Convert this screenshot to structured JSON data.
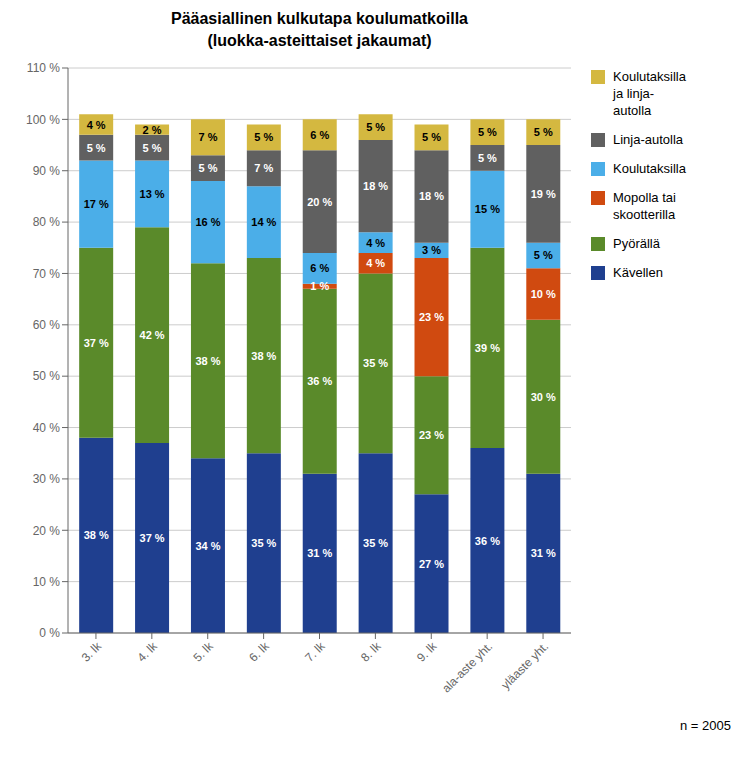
{
  "chart_data": {
    "type": "bar",
    "title": "Pääasiallinen kulkutapa koulumatkoilla\n(luokka-asteittaiset jakaumat)",
    "categories": [
      "3. lk",
      "4. lk",
      "5. lk",
      "6. lk",
      "7. lk",
      "8. lk",
      "9. lk",
      "ala-aste yht.",
      "yläaste yht."
    ],
    "series": [
      {
        "name": "Kävellen",
        "color": "#1F3F8F",
        "values": [
          38,
          37,
          34,
          35,
          31,
          35,
          27,
          36,
          31
        ],
        "value_labels": [
          "38 %",
          "37 %",
          "34 %",
          "35 %",
          "31 %",
          "35 %",
          "27 %",
          "36 %",
          "31 %"
        ]
      },
      {
        "name": "Pyörällä",
        "color": "#5A8A2A",
        "values": [
          37,
          42,
          38,
          38,
          36,
          35,
          23,
          39,
          30
        ],
        "value_labels": [
          "37 %",
          "42 %",
          "38 %",
          "38 %",
          "36 %",
          "35 %",
          "23 %",
          "39 %",
          "30 %"
        ]
      },
      {
        "name": "Mopolla tai\nskootterilla",
        "color": "#D04A10",
        "values": [
          0,
          0,
          0,
          0,
          1,
          4,
          23,
          0,
          10
        ],
        "value_labels": [
          null,
          null,
          null,
          null,
          "1 %",
          "4 %",
          "23 %",
          null,
          "10 %"
        ]
      },
      {
        "name": "Koulutaksilla",
        "color": "#4BAEE8",
        "values": [
          17,
          13,
          16,
          14,
          6,
          4,
          3,
          15,
          5
        ],
        "value_labels": [
          "17 %",
          "13 %",
          "16 %",
          "14 %",
          "6 %",
          "4 %",
          "3 %",
          "15 %",
          "5 %"
        ]
      },
      {
        "name": "Linja-autolla",
        "color": "#606060",
        "values": [
          5,
          5,
          5,
          7,
          20,
          18,
          18,
          5,
          19
        ],
        "value_labels": [
          "5 %",
          "5 %",
          "5 %",
          "7 %",
          "20 %",
          "18 %",
          "18 %",
          "5 %",
          "19 %"
        ]
      },
      {
        "name": "Koulutaksilla\nja linja-\nautolla",
        "color": "#D4B840",
        "values": [
          4,
          2,
          7,
          5,
          6,
          5,
          5,
          5,
          5
        ],
        "value_labels": [
          "4 %",
          "2 %",
          "7 %",
          "5 %",
          "6 %",
          "5 %",
          "5 %",
          "5 %",
          "5 %"
        ]
      }
    ],
    "ylim": [
      0,
      110
    ],
    "yticks": [
      {
        "value": 0,
        "label": "0 %"
      },
      {
        "value": 10,
        "label": "10 %"
      },
      {
        "value": 20,
        "label": "20 %"
      },
      {
        "value": 30,
        "label": "30 %"
      },
      {
        "value": 40,
        "label": "40 %"
      },
      {
        "value": 50,
        "label": "50 %"
      },
      {
        "value": 60,
        "label": "60 %"
      },
      {
        "value": 70,
        "label": "70 %"
      },
      {
        "value": 80,
        "label": "80 %"
      },
      {
        "value": 90,
        "label": "90 %"
      },
      {
        "value": 100,
        "label": "100 %"
      },
      {
        "value": 110,
        "label": "110 %"
      }
    ],
    "grid": true,
    "stacked": true,
    "data_labels": true,
    "legend": "right",
    "annotations": [
      "n = 2005"
    ]
  }
}
